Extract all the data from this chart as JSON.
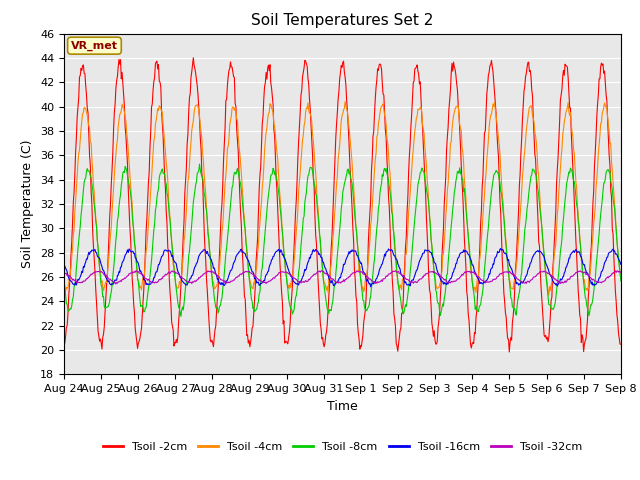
{
  "title": "Soil Temperatures Set 2",
  "xlabel": "Time",
  "ylabel": "Soil Temperature (C)",
  "ylim": [
    18,
    46
  ],
  "yticks": [
    18,
    20,
    22,
    24,
    26,
    28,
    30,
    32,
    34,
    36,
    38,
    40,
    42,
    44,
    46
  ],
  "colors": {
    "Tsoil -2cm": "#ff0000",
    "Tsoil -4cm": "#ff8800",
    "Tsoil -8cm": "#00cc00",
    "Tsoil -16cm": "#0000ee",
    "Tsoil -32cm": "#bb00bb"
  },
  "legend_labels": [
    "Tsoil -2cm",
    "Tsoil -4cm",
    "Tsoil -8cm",
    "Tsoil -16cm",
    "Tsoil -32cm"
  ],
  "annotation_text": "VR_met",
  "background_color": "#e8e8e8",
  "fig_background": "#ffffff",
  "n_days": 15,
  "points_per_day": 48,
  "xtick_labels": [
    "Aug 24",
    "Aug 25",
    "Aug 26",
    "Aug 27",
    "Aug 28",
    "Aug 29",
    "Aug 30",
    "Aug 31",
    "Sep 1",
    "Sep 2",
    "Sep 3",
    "Sep 4",
    "Sep 5",
    "Sep 6",
    "Sep 7",
    "Sep 8"
  ]
}
